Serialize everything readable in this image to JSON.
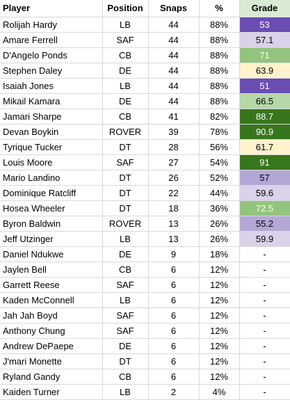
{
  "headers": {
    "player": "Player",
    "position": "Position",
    "snaps": "Snaps",
    "pct": "%",
    "grade": "Grade"
  },
  "colors": {
    "grade_header_bg": "#d9ead3",
    "dark_purple": "#6a4db3",
    "light_purple": "#b4a7d6",
    "pale_purple": "#d9d2e9",
    "dark_green": "#38761d",
    "mid_green": "#93c47d",
    "light_green": "#b6d7a8",
    "pale_yellow": "#fff2cc"
  },
  "rows": [
    {
      "player": "Rolijah Hardy",
      "position": "LB",
      "snaps": "44",
      "pct": "88%",
      "grade": "53",
      "bg": "#6a4db3",
      "fg": "#ffffff"
    },
    {
      "player": "Amare Ferrell",
      "position": "SAF",
      "snaps": "44",
      "pct": "88%",
      "grade": "57.1",
      "bg": "#d9d2e9",
      "fg": "#000000"
    },
    {
      "player": "D'Angelo Ponds",
      "position": "CB",
      "snaps": "44",
      "pct": "88%",
      "grade": "71",
      "bg": "#93c47d",
      "fg": "#ffffff"
    },
    {
      "player": "Stephen Daley",
      "position": "DE",
      "snaps": "44",
      "pct": "88%",
      "grade": "63.9",
      "bg": "#fff2cc",
      "fg": "#000000"
    },
    {
      "player": "Isaiah Jones",
      "position": "LB",
      "snaps": "44",
      "pct": "88%",
      "grade": "51",
      "bg": "#6a4db3",
      "fg": "#ffffff"
    },
    {
      "player": "Mikail Kamara",
      "position": "DE",
      "snaps": "44",
      "pct": "88%",
      "grade": "66.5",
      "bg": "#b6d7a8",
      "fg": "#000000"
    },
    {
      "player": "Jamari Sharpe",
      "position": "CB",
      "snaps": "41",
      "pct": "82%",
      "grade": "88.7",
      "bg": "#38761d",
      "fg": "#ffffff"
    },
    {
      "player": "Devan Boykin",
      "position": "ROVER",
      "snaps": "39",
      "pct": "78%",
      "grade": "90.9",
      "bg": "#38761d",
      "fg": "#ffffff"
    },
    {
      "player": "Tyrique Tucker",
      "position": "DT",
      "snaps": "28",
      "pct": "56%",
      "grade": "61.7",
      "bg": "#fff2cc",
      "fg": "#000000"
    },
    {
      "player": "Louis Moore",
      "position": "SAF",
      "snaps": "27",
      "pct": "54%",
      "grade": "91",
      "bg": "#38761d",
      "fg": "#ffffff"
    },
    {
      "player": "Mario Landino",
      "position": "DT",
      "snaps": "26",
      "pct": "52%",
      "grade": "57",
      "bg": "#b4a7d6",
      "fg": "#000000"
    },
    {
      "player": "Dominique Ratcliff",
      "position": "DT",
      "snaps": "22",
      "pct": "44%",
      "grade": "59.6",
      "bg": "#d9d2e9",
      "fg": "#000000"
    },
    {
      "player": "Hosea Wheeler",
      "position": "DT",
      "snaps": "18",
      "pct": "36%",
      "grade": "72.5",
      "bg": "#93c47d",
      "fg": "#ffffff"
    },
    {
      "player": "Byron Baldwin",
      "position": "ROVER",
      "snaps": "13",
      "pct": "26%",
      "grade": "55.2",
      "bg": "#b4a7d6",
      "fg": "#000000"
    },
    {
      "player": "Jeff Utzinger",
      "position": "LB",
      "snaps": "13",
      "pct": "26%",
      "grade": "59.9",
      "bg": "#d9d2e9",
      "fg": "#000000"
    },
    {
      "player": "Daniel Ndukwe",
      "position": "DE",
      "snaps": "9",
      "pct": "18%",
      "grade": "-",
      "bg": "#ffffff",
      "fg": "#000000"
    },
    {
      "player": "Jaylen Bell",
      "position": "CB",
      "snaps": "6",
      "pct": "12%",
      "grade": "-",
      "bg": "#ffffff",
      "fg": "#000000"
    },
    {
      "player": "Garrett Reese",
      "position": "SAF",
      "snaps": "6",
      "pct": "12%",
      "grade": "-",
      "bg": "#ffffff",
      "fg": "#000000"
    },
    {
      "player": "Kaden McConnell",
      "position": "LB",
      "snaps": "6",
      "pct": "12%",
      "grade": "-",
      "bg": "#ffffff",
      "fg": "#000000"
    },
    {
      "player": "Jah Jah Boyd",
      "position": "SAF",
      "snaps": "6",
      "pct": "12%",
      "grade": "-",
      "bg": "#ffffff",
      "fg": "#000000"
    },
    {
      "player": "Anthony Chung",
      "position": "SAF",
      "snaps": "6",
      "pct": "12%",
      "grade": "-",
      "bg": "#ffffff",
      "fg": "#000000"
    },
    {
      "player": "Andrew DePaepe",
      "position": "DE",
      "snaps": "6",
      "pct": "12%",
      "grade": "-",
      "bg": "#ffffff",
      "fg": "#000000"
    },
    {
      "player": "J'mari Monette",
      "position": "DT",
      "snaps": "6",
      "pct": "12%",
      "grade": "-",
      "bg": "#ffffff",
      "fg": "#000000"
    },
    {
      "player": "Ryland Gandy",
      "position": "CB",
      "snaps": "6",
      "pct": "12%",
      "grade": "-",
      "bg": "#ffffff",
      "fg": "#000000"
    },
    {
      "player": "Kaiden Turner",
      "position": "LB",
      "snaps": "2",
      "pct": "4%",
      "grade": "-",
      "bg": "#ffffff",
      "fg": "#000000"
    }
  ]
}
